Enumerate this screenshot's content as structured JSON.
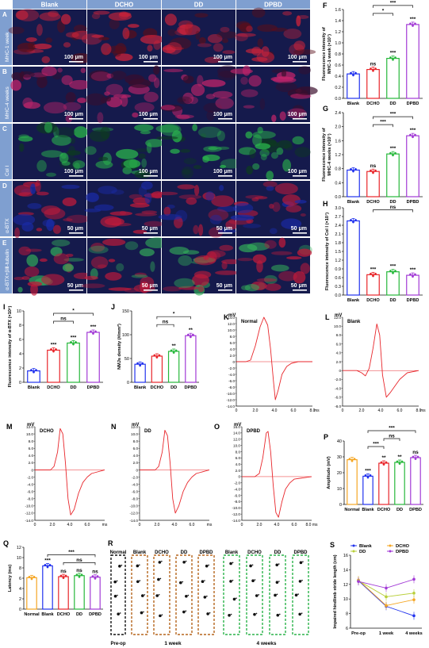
{
  "colors": {
    "Blank": "#2233ee",
    "DCHO": "#e8262b",
    "DD": "#27b83b",
    "DPBD": "#a23ad6",
    "Normal": "#f5a623",
    "trace": "#e8262b",
    "tissue_dark": "#11111f",
    "stain_red": "#c01a3a",
    "stain_blue": "#1c2ba0",
    "stain_green": "#1aa84a"
  },
  "micrographs": {
    "columns": [
      "Blank",
      "DCHO",
      "DD",
      "DPBD"
    ],
    "rows": [
      {
        "letter": "A",
        "label": "MHC-1 week",
        "scale": "100 μm",
        "tint": "red"
      },
      {
        "letter": "B",
        "label": "MHC-4 weeks",
        "scale": "100 μm",
        "tint": "magenta"
      },
      {
        "letter": "C",
        "label": "Col Ⅰ",
        "scale": "100 μm",
        "tint": "green"
      },
      {
        "letter": "D",
        "label": "α-BTX",
        "scale": "50 μm",
        "tint": "redblue"
      },
      {
        "letter": "E",
        "label": "α-BTX+βⅢ-tubulin",
        "scale": "50 μm",
        "tint": "mixed"
      }
    ]
  },
  "chart_data": [
    {
      "panel": "F",
      "type": "bar",
      "categories": [
        "Blank",
        "DCHO",
        "DD",
        "DPBD"
      ],
      "values": [
        0.44,
        0.52,
        0.72,
        1.33
      ],
      "ylabel_lines": [
        "Fluorescence intensity of",
        "MHC-1 week (×10⁷)"
      ],
      "ylim": [
        0,
        1.6
      ],
      "yticks": [
        "0.0",
        "0.2",
        "0.4",
        "0.6",
        "0.8",
        "1.0",
        "1.2",
        "1.4",
        "1.6"
      ],
      "marks": [
        "",
        "ns",
        "***",
        "***"
      ],
      "brackets": [
        {
          "from": "DCHO",
          "to": "DD",
          "label": "*",
          "level": 0
        },
        {
          "from": "DCHO",
          "to": "DPBD",
          "label": "***",
          "level": 1
        }
      ]
    },
    {
      "panel": "G",
      "type": "bar",
      "categories": [
        "Blank",
        "DCHO",
        "DD",
        "DPBD"
      ],
      "values": [
        0.76,
        0.72,
        1.22,
        1.74
      ],
      "ylabel_lines": [
        "Fluorescence intensity of",
        "MHC-4 weeks (×10⁷)"
      ],
      "ylim": [
        0,
        2.4
      ],
      "yticks": [
        "0.0",
        "0.4",
        "0.8",
        "1.2",
        "1.6",
        "2.0",
        "2.4"
      ],
      "marks": [
        "",
        "ns",
        "***",
        "***"
      ],
      "brackets": [
        {
          "from": "DCHO",
          "to": "DD",
          "label": "***",
          "level": 0
        },
        {
          "from": "DCHO",
          "to": "DPBD",
          "label": "***",
          "level": 1
        }
      ]
    },
    {
      "panel": "H",
      "type": "bar",
      "categories": [
        "Blank",
        "DCHO",
        "DD",
        "DPBD"
      ],
      "values": [
        2.55,
        0.7,
        0.8,
        0.68
      ],
      "ylabel_lines": [
        "Fluorescence intensity of Col Ⅰ (×10⁷)"
      ],
      "ylim": [
        0,
        3.0
      ],
      "yticks": [
        "0.0",
        "0.3",
        "0.6",
        "0.9",
        "1.2",
        "1.5",
        "1.8",
        "2.1",
        "2.4",
        "2.7",
        "3.0"
      ],
      "marks": [
        "",
        "***",
        "***",
        "***"
      ],
      "brackets": [
        {
          "from": "DCHO",
          "to": "DPBD",
          "label": "ns",
          "level": 0
        }
      ]
    },
    {
      "panel": "I",
      "type": "bar",
      "categories": [
        "Blank",
        "DCHO",
        "DD",
        "DPBD"
      ],
      "values": [
        1.6,
        4.5,
        5.5,
        7.0
      ],
      "ylabel_lines": [
        "Fluorescence intensity of α-BTX (×10⁶)"
      ],
      "ylim": [
        0,
        10
      ],
      "yticks": [
        "0",
        "2",
        "4",
        "6",
        "8",
        "10"
      ],
      "marks": [
        "",
        "***",
        "***",
        "***"
      ],
      "brackets": [
        {
          "from": "DCHO",
          "to": "DD",
          "label": "ns",
          "level": 0
        },
        {
          "from": "DCHO",
          "to": "DPBD",
          "label": "*",
          "level": 1
        }
      ]
    },
    {
      "panel": "J",
      "type": "bar",
      "categories": [
        "Blank",
        "DCHO",
        "DD",
        "DPBD"
      ],
      "values": [
        38,
        55,
        65,
        98
      ],
      "ylabel_lines": [
        "NMJs density (#/mm²)"
      ],
      "ylim": [
        0,
        150
      ],
      "yticks": [
        "0",
        "50",
        "100",
        "150"
      ],
      "marks": [
        "",
        "",
        "**",
        "**"
      ],
      "brackets": [
        {
          "from": "DCHO",
          "to": "DD",
          "label": "ns",
          "level": 0
        },
        {
          "from": "DCHO",
          "to": "DPBD",
          "label": "*",
          "level": 1
        }
      ]
    },
    {
      "panel": "K",
      "type": "line",
      "title": "Normal",
      "yunit": "mV",
      "xunit": "ms",
      "ylim": [
        -14,
        14
      ],
      "yticks": [
        "14.0",
        "12.0",
        "10.0",
        "8.0",
        "6.0",
        "4.0",
        "2.0",
        "0",
        "-2.0",
        "-4.0",
        "-6.0",
        "-8.0",
        "-10.0",
        "-12.0",
        "-14.0"
      ],
      "xlim": [
        0,
        8
      ],
      "xticks": [
        "0",
        "2.0",
        "4.0",
        "6.0",
        "8.0"
      ],
      "x": [
        0,
        1.0,
        1.5,
        2.0,
        2.5,
        2.9,
        3.3,
        3.6,
        3.9,
        4.1,
        4.4,
        4.8,
        5.3,
        5.8,
        6.5,
        8.0
      ],
      "y": [
        0,
        0,
        0.5,
        5.0,
        11.0,
        14.0,
        11.5,
        4.0,
        -6.0,
        -12.0,
        -9.0,
        -4.0,
        -1.5,
        -0.5,
        0,
        0
      ]
    },
    {
      "panel": "L",
      "type": "line",
      "title": "Blank",
      "yunit": "mV",
      "xunit": "ms",
      "ylim": [
        -8,
        12
      ],
      "yticks": [
        "12.0",
        "10.0",
        "8.0",
        "6.0",
        "4.0",
        "2.0",
        "0",
        "-2.0",
        "-4.0",
        "-6.0",
        "-8.0"
      ],
      "xlim": [
        0,
        8
      ],
      "xticks": [
        "0",
        "2.0",
        "4.0",
        "6.0",
        "8.0"
      ],
      "x": [
        0,
        1.5,
        2.0,
        2.4,
        2.8,
        3.2,
        3.6,
        3.9,
        4.2,
        4.6,
        5.0,
        5.5,
        6.0,
        6.8,
        8.0
      ],
      "y": [
        0,
        0,
        -0.5,
        -1.2,
        0.5,
        5.0,
        10.5,
        8.0,
        -1.0,
        -6.0,
        -5.0,
        -3.5,
        -2.0,
        -0.5,
        0
      ]
    },
    {
      "panel": "M",
      "type": "line",
      "title": "DCHO",
      "yunit": "mV",
      "xunit": "ms",
      "ylim": [
        -14,
        12
      ],
      "yticks": [
        "12.0",
        "10.0",
        "8.0",
        "6.0",
        "4.0",
        "2.0",
        "0",
        "-2.0",
        "-4.0",
        "-6.0",
        "-8.0",
        "-10.0",
        "-12.0",
        "-14.0"
      ],
      "xlim": [
        0,
        8
      ],
      "xticks": [
        "0",
        "2.0",
        "4.0",
        "6.0",
        "ms"
      ],
      "x": [
        0,
        1.8,
        2.2,
        2.6,
        2.9,
        3.2,
        3.5,
        3.8,
        4.1,
        4.5,
        5.0,
        5.5,
        6.0,
        6.5,
        8.0
      ],
      "y": [
        0,
        0,
        1.0,
        5.0,
        11.5,
        10.0,
        2.0,
        -8.0,
        -12.5,
        -11.0,
        -6.5,
        -3.5,
        -2.0,
        -1.0,
        0
      ]
    },
    {
      "panel": "N",
      "type": "line",
      "title": "DD",
      "yunit": "mV",
      "xunit": "ms",
      "ylim": [
        -14,
        12
      ],
      "yticks": [
        "12.0",
        "10.0",
        "8.0",
        "6.0",
        "4.0",
        "2.0",
        "0",
        "-2.0",
        "-4.0",
        "-6.0",
        "-8.0",
        "-10.0",
        "-12.0",
        "-14.0"
      ],
      "xlim": [
        0,
        8
      ],
      "xticks": [
        "0",
        "2.0",
        "4.0",
        "6.0",
        "ms"
      ],
      "x": [
        0,
        1.8,
        2.2,
        2.6,
        2.9,
        3.2,
        3.5,
        3.8,
        4.1,
        4.5,
        5.0,
        5.5,
        6.0,
        6.5,
        8.0
      ],
      "y": [
        0,
        0,
        1.0,
        5.0,
        11.0,
        9.5,
        2.0,
        -8.0,
        -12.0,
        -10.0,
        -6.0,
        -3.5,
        -2.0,
        -1.0,
        0
      ]
    },
    {
      "panel": "O",
      "type": "line",
      "title": "DPBD",
      "yunit": "mV",
      "xunit": "ms",
      "ylim": [
        -14,
        16
      ],
      "yticks": [
        "16.0",
        "14.0",
        "12.0",
        "10.0",
        "8.0",
        "6.0",
        "4.0",
        "2.0",
        "0",
        "-2.0",
        "-4.0",
        "-6.0",
        "-8.0",
        "-10.0",
        "-12.0",
        "-14.0"
      ],
      "xlim": [
        0,
        8
      ],
      "xticks": [
        "0",
        "2.0",
        "4.0",
        "6.0",
        "8.0 ms"
      ],
      "x": [
        0,
        1.5,
        2.0,
        2.4,
        2.8,
        3.0,
        3.3,
        3.6,
        3.9,
        4.2,
        4.6,
        5.0,
        5.5,
        6.0,
        8.0
      ],
      "y": [
        0,
        0,
        1.0,
        6.0,
        14.0,
        14.5,
        8.0,
        -3.0,
        -11.5,
        -13.0,
        -8.0,
        -4.0,
        -2.0,
        -0.8,
        0
      ]
    },
    {
      "panel": "P",
      "type": "bar",
      "categories": [
        "Normal",
        "Blank",
        "DCHO",
        "DD",
        "DPBD"
      ],
      "values": [
        28.2,
        17.8,
        26.0,
        26.5,
        29.5
      ],
      "ylabel_lines": [
        "Amplitude (mV)"
      ],
      "ylim": [
        0,
        40
      ],
      "yticks": [
        "0",
        "10",
        "20",
        "30",
        "40"
      ],
      "marks": [
        "",
        "***",
        "**",
        "**",
        "ns"
      ],
      "brackets": [
        {
          "from": "Blank",
          "to": "DCHO",
          "label": "***",
          "level": 0
        },
        {
          "from": "DCHO",
          "to": "DD",
          "label": "ns",
          "level": 1
        },
        {
          "from": "Blank",
          "to": "DPBD",
          "label": "***",
          "level": 2
        }
      ]
    },
    {
      "panel": "Q",
      "type": "bar",
      "categories": [
        "Normal",
        "Blank",
        "DCHO",
        "DD",
        "DPBD"
      ],
      "values": [
        6.1,
        8.4,
        6.3,
        6.5,
        6.2
      ],
      "ylabel_lines": [
        "Latency (ms)"
      ],
      "ylim": [
        0,
        12
      ],
      "yticks": [
        "0",
        "2",
        "4",
        "6",
        "8",
        "10",
        "12"
      ],
      "marks": [
        "",
        "***",
        "ns",
        "ns",
        "ns"
      ],
      "brackets": [
        {
          "from": "Blank",
          "to": "DPBD",
          "label": "***",
          "level": 0
        },
        {
          "from": "DCHO",
          "to": "DPBD",
          "label": "ns",
          "level": -1
        }
      ]
    },
    {
      "panel": "S",
      "type": "line",
      "x": [
        "Pre-op",
        "1 week",
        "4 weeks"
      ],
      "ylabel_lines": [
        "Impaired hindlimb stride length (cm)"
      ],
      "ylim": [
        6,
        16
      ],
      "yticks": [
        "6",
        "8",
        "10",
        "12",
        "14",
        "16"
      ],
      "legend_position": "top",
      "series": [
        {
          "name": "Blank",
          "values": [
            12.5,
            9.0,
            7.7
          ]
        },
        {
          "name": "DCHO",
          "values": [
            12.6,
            9.1,
            9.9
          ]
        },
        {
          "name": "DD",
          "values": [
            12.5,
            10.3,
            10.8
          ]
        },
        {
          "name": "DPBD",
          "values": [
            12.4,
            11.5,
            12.7
          ]
        }
      ]
    }
  ],
  "footprints": {
    "pre_label": "Pre-op",
    "normal_label": "Normal",
    "week1_label": "1 week",
    "week4_label": "4 weeks",
    "week1_groups": [
      "Blank",
      "DCHO",
      "DD",
      "DPBD"
    ],
    "week4_groups": [
      "Blank",
      "DCHO",
      "DD",
      "DPBD"
    ],
    "normal_border": "#111111",
    "week1_border": "#b5651d",
    "week4_border": "#2bb34a"
  },
  "panel_letters": [
    "F",
    "G",
    "H",
    "I",
    "J",
    "K",
    "L",
    "M",
    "N",
    "O",
    "P",
    "Q",
    "R",
    "S"
  ]
}
